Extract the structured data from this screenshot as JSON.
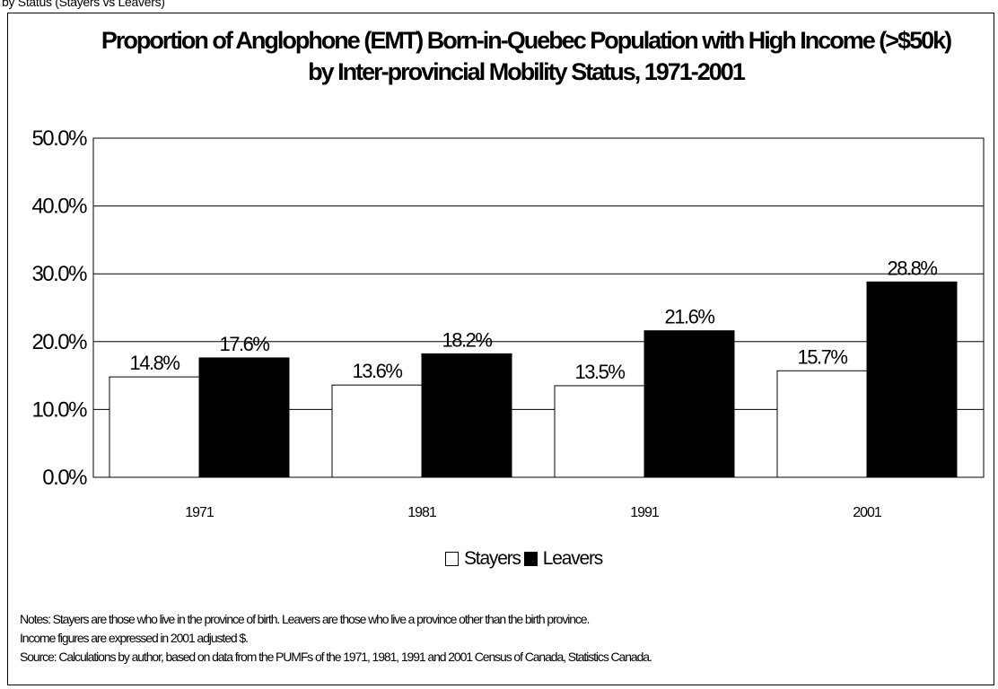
{
  "top_note": "by Status (Stayers vs Leavers)",
  "chart_data": {
    "type": "bar",
    "title_line1": "Proportion of Anglophone (EMT) Born-in-Quebec Population with High Income (>$50k)",
    "title_line2": "by Inter-provincial Mobility Status, 1971-2001",
    "categories": [
      "1971",
      "1981",
      "1991",
      "2001"
    ],
    "series": [
      {
        "name": "Stayers",
        "color": "#ffffff",
        "values": [
          14.8,
          13.6,
          13.5,
          15.7
        ],
        "labels": [
          "14.8%",
          "13.6%",
          "13.5%",
          "15.7%"
        ]
      },
      {
        "name": "Leavers",
        "color": "#000000",
        "values": [
          17.6,
          18.2,
          21.6,
          28.8
        ],
        "labels": [
          "17.6%",
          "18.2%",
          "21.6%",
          "28.8%"
        ]
      }
    ],
    "ylim": [
      0,
      50
    ],
    "yticks": [
      0,
      10,
      20,
      30,
      40,
      50
    ],
    "ytick_labels": [
      "0.0%",
      "10.0%",
      "20.0%",
      "30.0%",
      "40.0%",
      "50.0%"
    ],
    "grid": true,
    "legend_position": "bottom"
  },
  "notes": [
    "Notes: Stayers are those who live in the province of birth. Leavers are those who live a province other than the birth province.",
    "Income figures are expressed in 2001 adjusted $.",
    "Source: Calculations by author, based on data from the PUMFs of the 1971, 1981, 1991 and 2001 Census of Canada, Statistics Canada."
  ]
}
